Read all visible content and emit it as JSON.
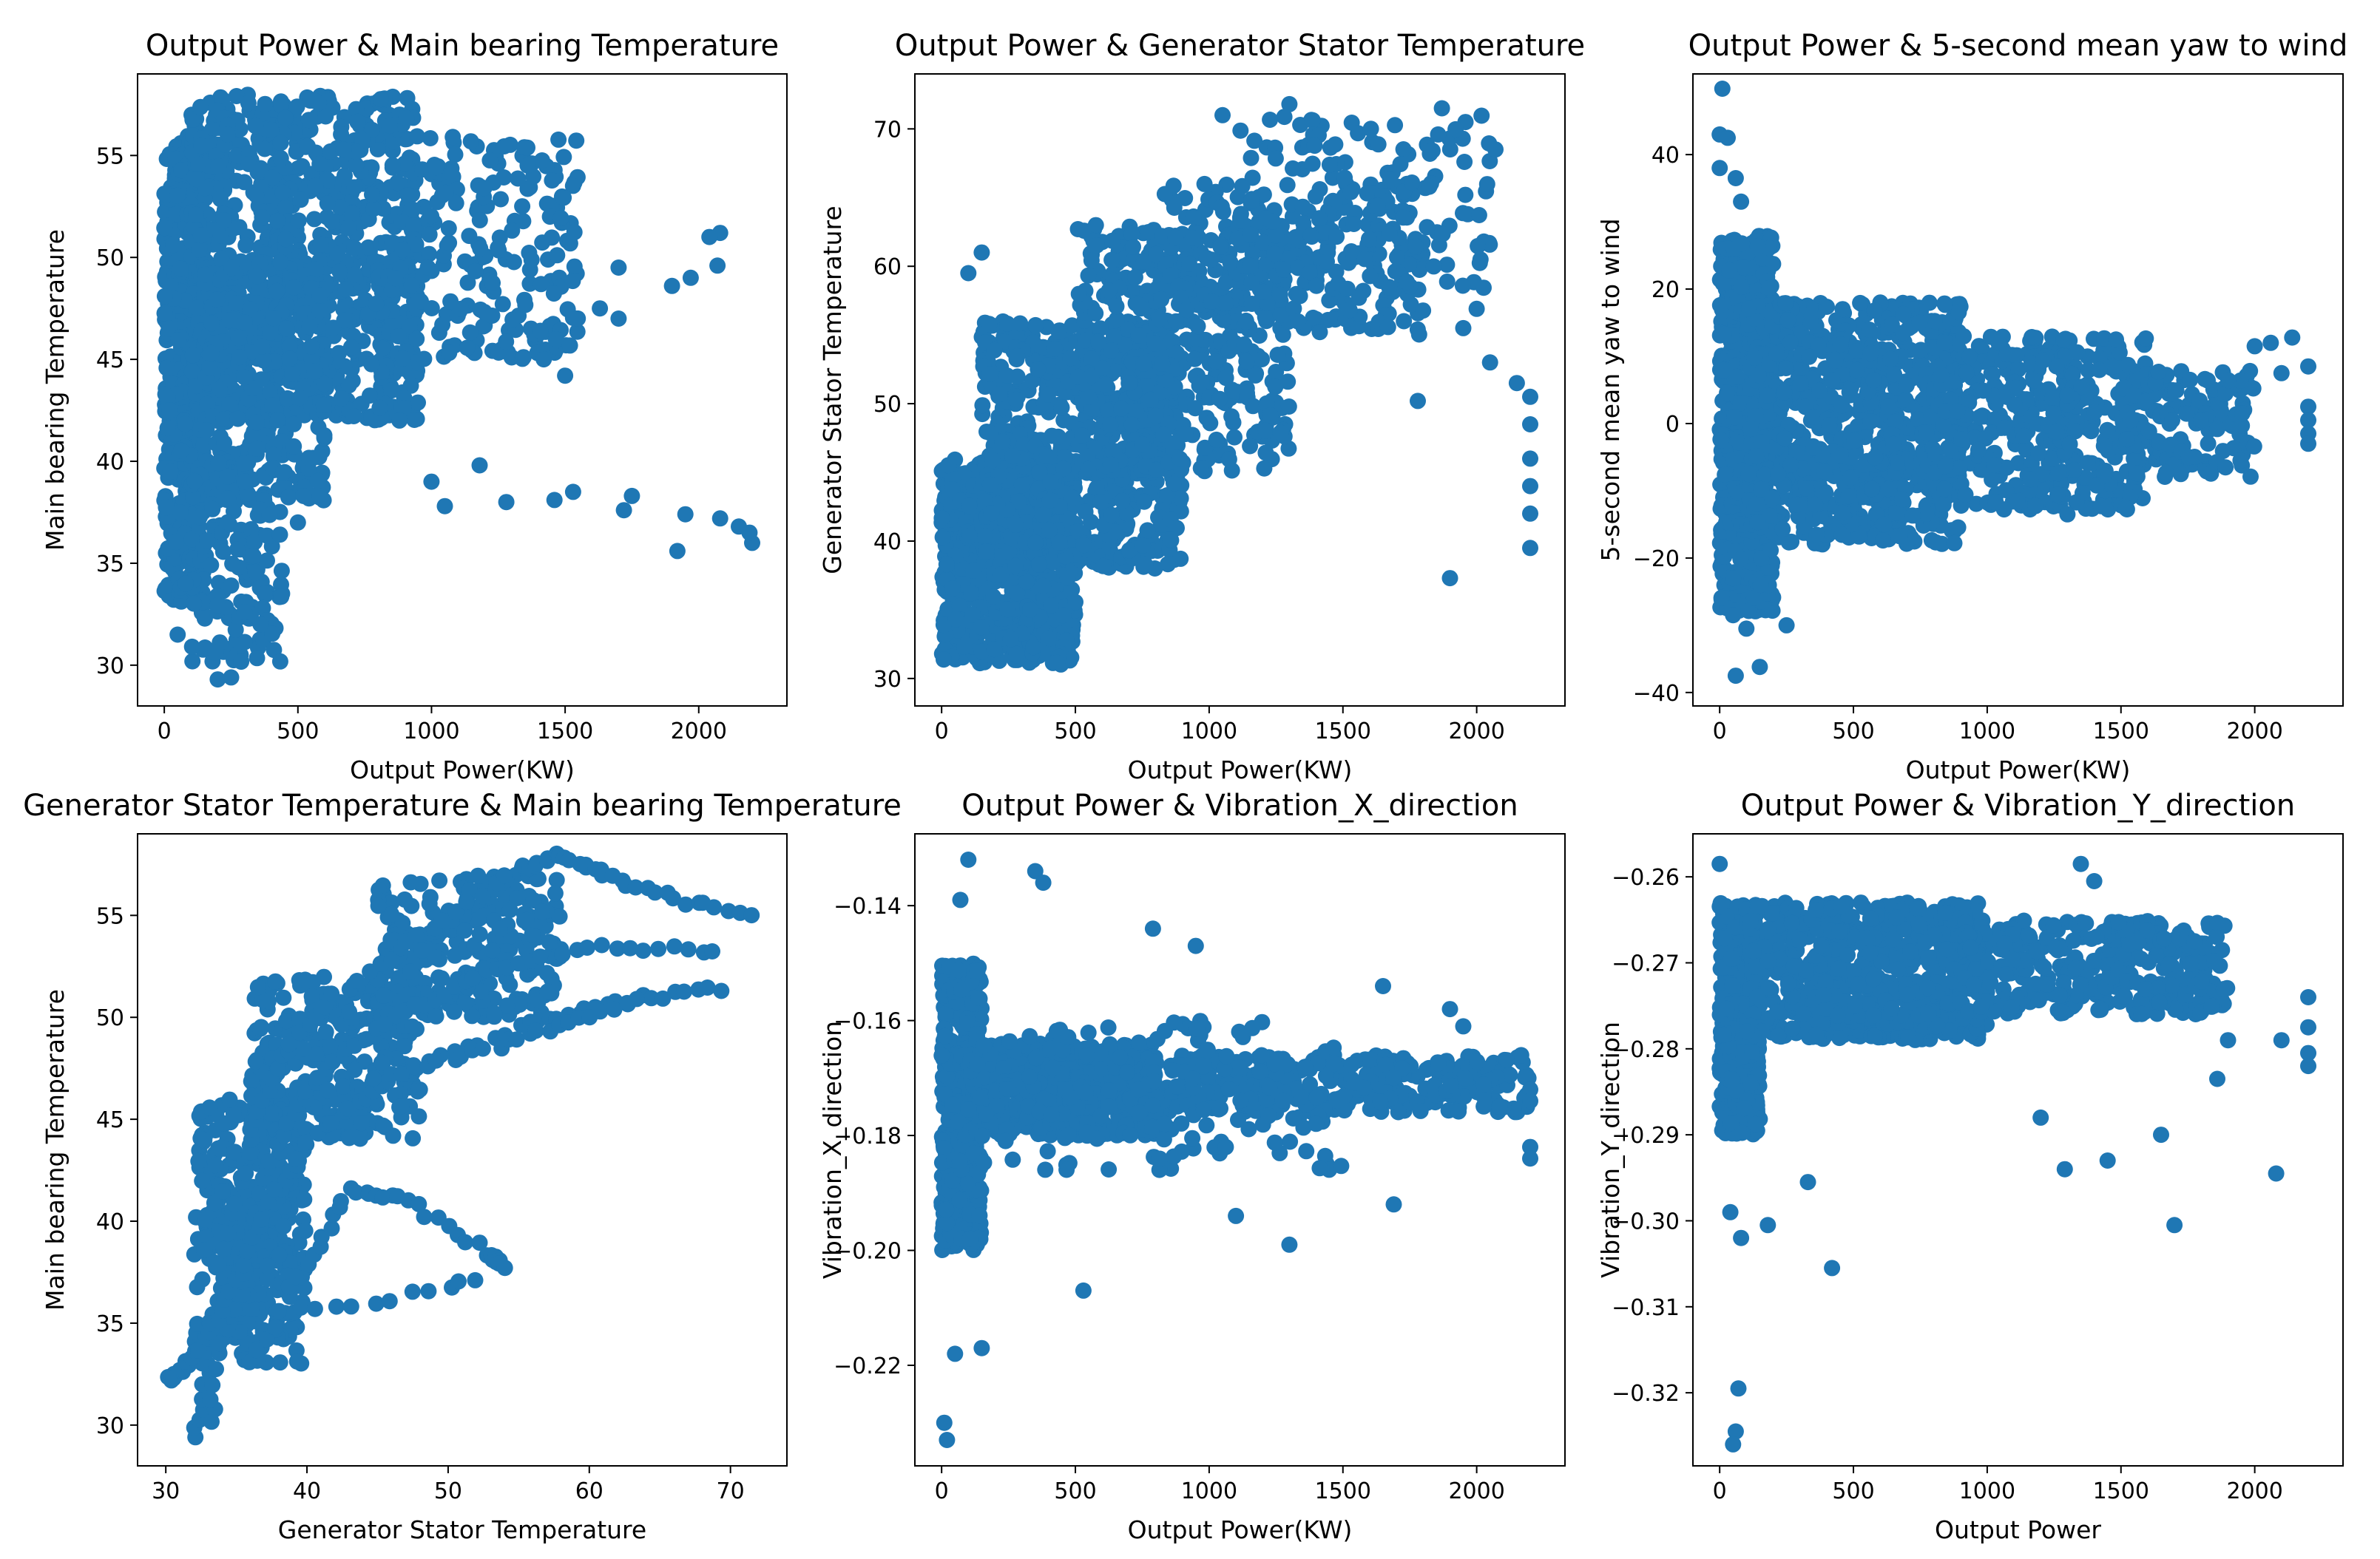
{
  "figure": {
    "marker_color": "#1f77b4",
    "background": "#ffffff"
  },
  "chart_data": [
    {
      "type": "scatter",
      "title": "Output Power & Main bearing Temperature",
      "xlabel": "Output Power(KW)",
      "ylabel": "Main bearing Temperature",
      "xlim": [
        -100,
        2330
      ],
      "ylim": [
        28.0,
        59.0
      ],
      "xticks": [
        0,
        500,
        1000,
        1500,
        2000
      ],
      "xtick_labels": [
        "0",
        "500",
        "1000",
        "1500",
        "2000"
      ],
      "yticks": [
        30,
        35,
        40,
        45,
        50,
        55
      ],
      "ytick_labels": [
        "30",
        "35",
        "40",
        "45",
        "50",
        "55"
      ],
      "clusters": [
        {
          "x": [
            0,
            150
          ],
          "y": [
            33,
            56
          ],
          "n": 500
        },
        {
          "x": [
            100,
            950
          ],
          "y": [
            42,
            58
          ],
          "n": 900
        },
        {
          "x": [
            150,
            600
          ],
          "y": [
            38,
            50
          ],
          "n": 350
        },
        {
          "x": [
            850,
            1550
          ],
          "y": [
            45,
            56
          ],
          "n": 220
        },
        {
          "x": [
            100,
            450
          ],
          "y": [
            30,
            40
          ],
          "n": 150
        }
      ],
      "points": [
        [
          2200,
          36
        ],
        [
          2190,
          36.5
        ],
        [
          2150,
          36.8
        ],
        [
          2080,
          37.2
        ],
        [
          1950,
          37.4
        ],
        [
          1920,
          35.6
        ],
        [
          1750,
          38.3
        ],
        [
          1720,
          37.6
        ],
        [
          1530,
          38.5
        ],
        [
          1460,
          38.1
        ],
        [
          1280,
          38.0
        ],
        [
          1180,
          39.8
        ],
        [
          2080,
          51.2
        ],
        [
          2040,
          51.0
        ],
        [
          2070,
          49.6
        ],
        [
          1970,
          49.0
        ],
        [
          1900,
          48.6
        ],
        [
          1700,
          49.5
        ],
        [
          1630,
          47.5
        ],
        [
          1700,
          47.0
        ],
        [
          1500,
          44.2
        ],
        [
          1420,
          45.0
        ],
        [
          880,
          42.0
        ],
        [
          1000,
          39.0
        ],
        [
          1050,
          37.8
        ],
        [
          250,
          29.4
        ],
        [
          200,
          29.3
        ],
        [
          360,
          32.0
        ],
        [
          300,
          32.6
        ],
        [
          50,
          31.5
        ],
        [
          80,
          34.0
        ],
        [
          60,
          37.5
        ],
        [
          500,
          37.0
        ]
      ]
    },
    {
      "type": "scatter",
      "title": "Output Power & Generator Stator Temperature",
      "xlabel": "Output Power(KW)",
      "ylabel": "Generator Stator Temperature",
      "xlim": [
        -100,
        2330
      ],
      "ylim": [
        28.0,
        74.0
      ],
      "xticks": [
        0,
        500,
        1000,
        1500,
        2000
      ],
      "xtick_labels": [
        "0",
        "500",
        "1000",
        "1500",
        "2000"
      ],
      "yticks": [
        30,
        40,
        50,
        60,
        70
      ],
      "ytick_labels": [
        "30",
        "40",
        "50",
        "60",
        "70"
      ],
      "clusters": [
        {
          "x": [
            0,
            500
          ],
          "y": [
            31,
            46
          ],
          "n": 800
        },
        {
          "x": [
            150,
            900
          ],
          "y": [
            38,
            56
          ],
          "n": 700
        },
        {
          "x": [
            500,
            1300
          ],
          "y": [
            45,
            63
          ],
          "n": 400
        },
        {
          "x": [
            800,
            1800
          ],
          "y": [
            55,
            66
          ],
          "n": 250
        },
        {
          "x": [
            1100,
            2050
          ],
          "y": [
            58,
            71
          ],
          "n": 150
        }
      ],
      "points": [
        [
          2200,
          39.5
        ],
        [
          2200,
          42
        ],
        [
          2200,
          44
        ],
        [
          2200,
          46
        ],
        [
          2200,
          48.5
        ],
        [
          2200,
          50.5
        ],
        [
          2150,
          51.5
        ],
        [
          2050,
          53
        ],
        [
          1900,
          37.3
        ],
        [
          1780,
          50.2
        ],
        [
          2000,
          56.9
        ],
        [
          1950,
          55.5
        ],
        [
          2070,
          68.5
        ],
        [
          1870,
          71.5
        ],
        [
          1300,
          71.8
        ],
        [
          1050,
          71.0
        ],
        [
          100,
          59.5
        ],
        [
          150,
          61.0
        ]
      ]
    },
    {
      "type": "scatter",
      "title": "Output Power & 5-second mean yaw to wind",
      "xlabel": "Output Power(KW)",
      "ylabel": "5-second mean yaw to wind",
      "xlim": [
        -100,
        2330
      ],
      "ylim": [
        -42.0,
        52.0
      ],
      "xticks": [
        0,
        500,
        1000,
        1500,
        2000
      ],
      "xtick_labels": [
        "0",
        "500",
        "1000",
        "1500",
        "2000"
      ],
      "yticks": [
        -40,
        -20,
        0,
        20,
        40
      ],
      "ytick_labels": [
        "−40",
        "−20",
        "0",
        "20",
        "40"
      ],
      "clusters": [
        {
          "x": [
            0,
            200
          ],
          "y": [
            -28,
            28
          ],
          "n": 600
        },
        {
          "x": [
            100,
            900
          ],
          "y": [
            -18,
            18
          ],
          "n": 900
        },
        {
          "x": [
            800,
            1600
          ],
          "y": [
            -13,
            13
          ],
          "n": 400
        },
        {
          "x": [
            1500,
            2000
          ],
          "y": [
            -8,
            8
          ],
          "n": 150
        }
      ],
      "points": [
        [
          10,
          49.8
        ],
        [
          0,
          43
        ],
        [
          30,
          42.5
        ],
        [
          0,
          38
        ],
        [
          60,
          36.5
        ],
        [
          80,
          33
        ],
        [
          60,
          -37.5
        ],
        [
          150,
          -36.2
        ],
        [
          100,
          -30.5
        ],
        [
          250,
          -30.0
        ],
        [
          50,
          -28.5
        ],
        [
          2200,
          8.5
        ],
        [
          2140,
          12.8
        ],
        [
          2060,
          12.0
        ],
        [
          2000,
          11.5
        ],
        [
          2200,
          2.5
        ],
        [
          2200,
          0.5
        ],
        [
          2200,
          -1.5
        ],
        [
          2200,
          -3.0
        ],
        [
          2100,
          7.5
        ],
        [
          1300,
          -13.5
        ]
      ]
    },
    {
      "type": "scatter",
      "title": "Generator Stator Temperature & Main bearing Temperature",
      "xlabel": "Generator Stator Temperature",
      "ylabel": "Main bearing Temperature",
      "xlim": [
        28.0,
        74.0
      ],
      "ylim": [
        28.0,
        59.0
      ],
      "xticks": [
        30,
        40,
        50,
        60,
        70
      ],
      "xtick_labels": [
        "30",
        "40",
        "50",
        "60",
        "70"
      ],
      "yticks": [
        30,
        35,
        40,
        45,
        50,
        55
      ],
      "ytick_labels": [
        "30",
        "35",
        "40",
        "45",
        "50",
        "55"
      ],
      "clusters": [
        {
          "x": [
            32,
            40
          ],
          "y": [
            33,
            46
          ],
          "n": 350
        },
        {
          "x": [
            36,
            48
          ],
          "y": [
            44,
            52
          ],
          "n": 300
        },
        {
          "x": [
            45,
            58
          ],
          "y": [
            50,
            57
          ],
          "n": 250
        }
      ],
      "paths": [
        {
          "points": [
            [
              32,
              29.3
            ],
            [
              33,
              33
            ],
            [
              34,
              38
            ],
            [
              36,
              44
            ],
            [
              38,
              48
            ],
            [
              42,
              51
            ],
            [
              48,
              54
            ],
            [
              55,
              57.3
            ],
            [
              58,
              58
            ],
            [
              61,
              57
            ],
            [
              66,
              55.8
            ],
            [
              72,
              55
            ]
          ],
          "n": 90
        },
        {
          "points": [
            [
              33,
              30
            ],
            [
              35,
              37
            ],
            [
              37,
              42
            ],
            [
              40,
              46.5
            ],
            [
              45,
              49.5
            ],
            [
              52,
              52
            ],
            [
              60,
              53.5
            ],
            [
              70,
              53.3
            ]
          ],
          "n": 70
        },
        {
          "points": [
            [
              34,
              34
            ],
            [
              37,
              40
            ],
            [
              40,
              44
            ],
            [
              46,
              47
            ],
            [
              55,
              49.5
            ],
            [
              62,
              50.8
            ],
            [
              70,
              51.5
            ]
          ],
          "n": 60
        },
        {
          "points": [
            [
              36,
              33
            ],
            [
              40,
              38
            ],
            [
              43,
              41.5
            ],
            [
              47,
              41
            ],
            [
              53,
              38.5
            ],
            [
              54,
              37.6
            ]
          ],
          "n": 40
        },
        {
          "points": [
            [
              30,
              32.2
            ],
            [
              31,
              32.5
            ],
            [
              32,
              33.5
            ],
            [
              34,
              35.5
            ],
            [
              36,
              38.5
            ],
            [
              38,
              42
            ]
          ],
          "n": 30
        },
        {
          "points": [
            [
              38,
              35.5
            ],
            [
              42,
              35.8
            ],
            [
              46,
              36.2
            ],
            [
              50,
              36.8
            ],
            [
              53,
              37.3
            ]
          ],
          "n": 12
        },
        {
          "points": [
            [
              45,
              47
            ],
            [
              52,
              48.3
            ],
            [
              58,
              49.5
            ],
            [
              64,
              51
            ]
          ],
          "n": 25
        }
      ]
    },
    {
      "type": "scatter",
      "title": "Output Power & Vibration_X_direction",
      "xlabel": "Output Power(KW)",
      "ylabel": "Vibration_X_direction",
      "xlim": [
        -100,
        2330
      ],
      "ylim": [
        -0.2375,
        -0.1275
      ],
      "xticks": [
        0,
        500,
        1000,
        1500,
        2000
      ],
      "xtick_labels": [
        "0",
        "500",
        "1000",
        "1500",
        "2000"
      ],
      "yticks": [
        -0.22,
        -0.2,
        -0.18,
        -0.16,
        -0.14
      ],
      "ytick_labels": [
        "−0.22",
        "−0.20",
        "−0.18",
        "−0.16",
        "−0.14"
      ],
      "clusters": [
        {
          "x": [
            0,
            150
          ],
          "y": [
            -0.2,
            -0.15
          ],
          "n": 550
        },
        {
          "x": [
            100,
            800
          ],
          "y": [
            -0.18,
            -0.164
          ],
          "n": 500
        },
        {
          "x": [
            700,
            2200
          ],
          "y": [
            -0.176,
            -0.166
          ],
          "n": 350
        },
        {
          "x": [
            150,
            1500
          ],
          "y": [
            -0.186,
            -0.16
          ],
          "n": 150
        }
      ],
      "points": [
        [
          100,
          -0.132
        ],
        [
          350,
          -0.134
        ],
        [
          380,
          -0.136
        ],
        [
          790,
          -0.144
        ],
        [
          950,
          -0.147
        ],
        [
          1650,
          -0.154
        ],
        [
          1900,
          -0.158
        ],
        [
          1950,
          -0.161
        ],
        [
          10,
          -0.23
        ],
        [
          20,
          -0.233
        ],
        [
          50,
          -0.218
        ],
        [
          150,
          -0.217
        ],
        [
          530,
          -0.207
        ],
        [
          1300,
          -0.199
        ],
        [
          1100,
          -0.194
        ],
        [
          1690,
          -0.192
        ],
        [
          2200,
          -0.182
        ],
        [
          2200,
          -0.184
        ],
        [
          2200,
          -0.172
        ],
        [
          2200,
          -0.174
        ],
        [
          70,
          -0.139
        ]
      ]
    },
    {
      "type": "scatter",
      "title": "Output Power & Vibration_Y_direction",
      "xlabel": "Output Power",
      "ylabel": "Vibration_Y_direction",
      "xlim": [
        -100,
        2330
      ],
      "ylim": [
        -0.3285,
        -0.255
      ],
      "xticks": [
        0,
        500,
        1000,
        1500,
        2000
      ],
      "xtick_labels": [
        "0",
        "500",
        "1000",
        "1500",
        "2000"
      ],
      "yticks": [
        -0.32,
        -0.31,
        -0.3,
        -0.29,
        -0.28,
        -0.27,
        -0.26
      ],
      "ytick_labels": [
        "−0.32",
        "−0.31",
        "−0.30",
        "−0.29",
        "−0.28",
        "−0.27",
        "−0.26"
      ],
      "clusters": [
        {
          "x": [
            0,
            150
          ],
          "y": [
            -0.29,
            -0.263
          ],
          "n": 450
        },
        {
          "x": [
            100,
            1000
          ],
          "y": [
            -0.279,
            -0.263
          ],
          "n": 700
        },
        {
          "x": [
            900,
            1900
          ],
          "y": [
            -0.276,
            -0.265
          ],
          "n": 350
        }
      ],
      "points": [
        [
          0,
          -0.2585
        ],
        [
          1350,
          -0.2585
        ],
        [
          1400,
          -0.2605
        ],
        [
          2200,
          -0.274
        ],
        [
          2200,
          -0.2775
        ],
        [
          2200,
          -0.2805
        ],
        [
          2200,
          -0.282
        ],
        [
          2100,
          -0.279
        ],
        [
          2080,
          -0.2945
        ],
        [
          1700,
          -0.3005
        ],
        [
          1650,
          -0.29
        ],
        [
          1450,
          -0.293
        ],
        [
          1290,
          -0.294
        ],
        [
          1200,
          -0.288
        ],
        [
          420,
          -0.3055
        ],
        [
          70,
          -0.3195
        ],
        [
          60,
          -0.3245
        ],
        [
          50,
          -0.326
        ],
        [
          80,
          -0.302
        ],
        [
          40,
          -0.299
        ],
        [
          180,
          -0.3005
        ],
        [
          330,
          -0.2955
        ],
        [
          1860,
          -0.2835
        ],
        [
          1900,
          -0.279
        ]
      ]
    }
  ]
}
